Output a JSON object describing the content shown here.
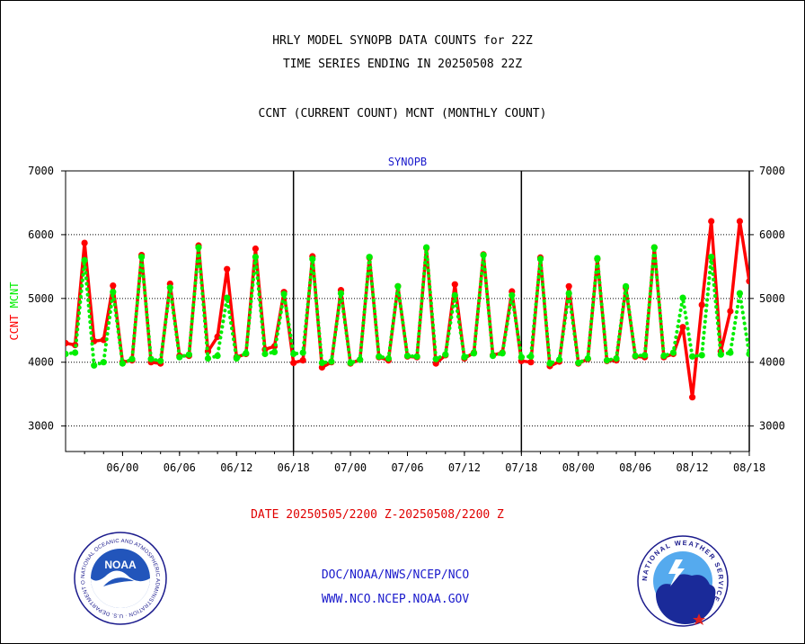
{
  "header": {
    "line1": "HRLY MODEL SYNOPB DATA COUNTS for 22Z",
    "line2": "TIME SERIES ENDING IN 20250508 22Z",
    "line3": "CCNT (CURRENT COUNT) MCNT (MONTHLY COUNT)"
  },
  "footer": {
    "date_range": "DATE 20250505/2200 Z-20250508/2200 Z",
    "org_line": "DOC/NOAA/NWS/NCEP/NCO",
    "url_line": "WWW.NCO.NCEP.NOAA.GOV"
  },
  "logos": {
    "noaa": {
      "center_text": "NOAA",
      "ring_text": "NATIONAL OCEANIC AND ATMOSPHERIC ADMINISTRATION · U.S. DEPARTMENT OF COMMERCE"
    },
    "nws": {
      "ring_text": "NATIONAL WEATHER SERVICE"
    }
  },
  "colors": {
    "ccnt": "#ff0000",
    "mcnt": "#00ee00",
    "title": "#1a1acc",
    "text": "#000000"
  },
  "chart_data": {
    "type": "line",
    "title": "SYNOPB",
    "ylabel_left": [
      "CCNT",
      "MCNT"
    ],
    "ylim": [
      2600,
      7000
    ],
    "xlim": [
      -4,
      68
    ],
    "yticks": [
      3000,
      4000,
      5000,
      6000,
      7000
    ],
    "xticks": [
      {
        "x": 2,
        "label": "06/00"
      },
      {
        "x": 8,
        "label": "06/06"
      },
      {
        "x": 14,
        "label": "06/12"
      },
      {
        "x": 20,
        "label": "06/18"
      },
      {
        "x": 26,
        "label": "07/00"
      },
      {
        "x": 32,
        "label": "07/06"
      },
      {
        "x": 38,
        "label": "07/12"
      },
      {
        "x": 44,
        "label": "07/18"
      },
      {
        "x": 50,
        "label": "08/00"
      },
      {
        "x": 56,
        "label": "08/06"
      },
      {
        "x": 62,
        "label": "08/12"
      },
      {
        "x": 68,
        "label": "08/18"
      }
    ],
    "vlines": [
      20,
      44,
      68
    ],
    "grid_y": [
      3000,
      4000,
      5000,
      6000
    ],
    "series": [
      {
        "name": "CCNT",
        "color": "#ff0000",
        "style": "solid",
        "x0": -4,
        "values": [
          4300,
          4270,
          5870,
          4330,
          4350,
          5200,
          4000,
          4030,
          5680,
          4000,
          3980,
          5230,
          4100,
          4100,
          5830,
          4170,
          4400,
          5460,
          4080,
          4130,
          5780,
          4200,
          4250,
          5100,
          3990,
          4030,
          5660,
          3920,
          4000,
          5130,
          3980,
          4040,
          5640,
          4080,
          4030,
          5190,
          4090,
          4080,
          5790,
          3980,
          4110,
          5220,
          4060,
          4150,
          5690,
          4110,
          4150,
          5110,
          4020,
          4000,
          5640,
          3940,
          4010,
          5190,
          3980,
          4050,
          5620,
          4020,
          4030,
          5170,
          4090,
          4080,
          5800,
          4080,
          4130,
          4550,
          3450,
          4900,
          6210,
          4170,
          4800,
          6210,
          5270
        ]
      },
      {
        "name": "MCNT",
        "color": "#00ee00",
        "style": "dotted",
        "x0": -4,
        "values": [
          4130,
          4150,
          5600,
          3950,
          4000,
          5100,
          3980,
          4050,
          5650,
          4050,
          4020,
          5170,
          4080,
          4120,
          5800,
          4060,
          4100,
          5010,
          4060,
          4140,
          5650,
          4130,
          4160,
          5070,
          4130,
          4150,
          5620,
          3990,
          4010,
          5080,
          3990,
          4040,
          5650,
          4090,
          4060,
          5190,
          4100,
          4090,
          5800,
          4050,
          4120,
          5050,
          4080,
          4140,
          5680,
          4100,
          4140,
          5050,
          4080,
          4090,
          5620,
          3980,
          4040,
          5080,
          3990,
          4060,
          5630,
          4030,
          4060,
          5190,
          4100,
          4110,
          5800,
          4100,
          4150,
          5010,
          4090,
          4110,
          5650,
          4120,
          4150,
          5080,
          4130
        ]
      }
    ]
  }
}
